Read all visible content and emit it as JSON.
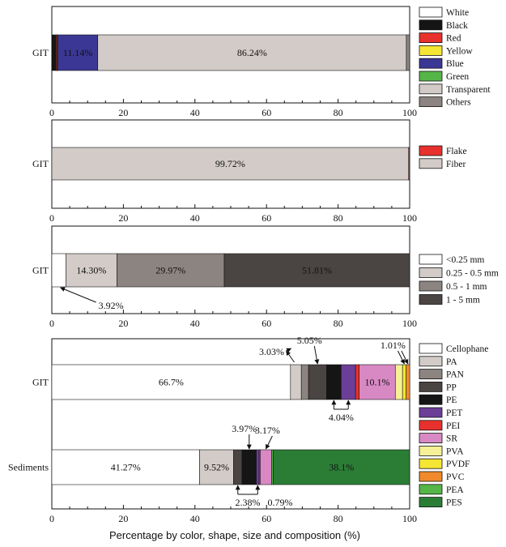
{
  "chart_data": [
    {
      "type": "bar",
      "orientation": "horizontal-stacked",
      "categories": [
        "GIT"
      ],
      "xlim": [
        0,
        100
      ],
      "ticks": [
        "0",
        "20",
        "40",
        "60",
        "80",
        "100"
      ],
      "series": [
        {
          "name": "White",
          "color": "#ffffff",
          "values": [
            0.0
          ]
        },
        {
          "name": "Black",
          "color": "#151515",
          "values": [
            1.2
          ]
        },
        {
          "name": "Red",
          "color": "#e8312c",
          "values": [
            0.3
          ]
        },
        {
          "name": "Yellow",
          "color": "#f5e633",
          "values": [
            0.2
          ]
        },
        {
          "name": "Blue",
          "color": "#3b3794",
          "values": [
            11.14
          ]
        },
        {
          "name": "Green",
          "color": "#55b547",
          "values": [
            0.0
          ]
        },
        {
          "name": "Transparent",
          "color": "#d2cbc7",
          "values": [
            86.24
          ]
        },
        {
          "name": "Others",
          "color": "#8c8480",
          "values": [
            0.92
          ]
        }
      ],
      "labels": [
        {
          "text": "11.14%",
          "series": "Blue",
          "color": "#ffffff"
        },
        {
          "text": "86.24%",
          "series": "Transparent",
          "color": "#222222"
        }
      ]
    },
    {
      "type": "bar",
      "orientation": "horizontal-stacked",
      "categories": [
        "GIT"
      ],
      "xlim": [
        0,
        100
      ],
      "ticks": [
        "0",
        "20",
        "40",
        "60",
        "80",
        "100"
      ],
      "series": [
        {
          "name": "Fiber",
          "color": "#d2cbc7",
          "values": [
            99.72
          ]
        },
        {
          "name": "Flake",
          "color": "#e8312c",
          "values": [
            0.28
          ]
        }
      ],
      "legend_order": [
        "Flake",
        "Fiber"
      ],
      "labels": [
        {
          "text": "99.72%",
          "series": "Fiber",
          "color": "#222222"
        }
      ]
    },
    {
      "type": "bar",
      "orientation": "horizontal-stacked",
      "categories": [
        "GIT"
      ],
      "xlim": [
        0,
        100
      ],
      "ticks": [
        "0",
        "20",
        "40",
        "60",
        "80",
        "100"
      ],
      "series": [
        {
          "name": "<0.25 mm",
          "color": "#ffffff",
          "values": [
            3.92
          ]
        },
        {
          "name": "0.25 - 0.5 mm",
          "color": "#d2cbc7",
          "values": [
            14.3
          ]
        },
        {
          "name": "0.5 - 1 mm",
          "color": "#8c8480",
          "values": [
            29.97
          ]
        },
        {
          "name": "1 - 5 mm",
          "color": "#4a4442",
          "values": [
            51.81
          ]
        }
      ],
      "labels": [
        {
          "text": "14.30%",
          "series": "0.25 - 0.5 mm",
          "color": "#222222"
        },
        {
          "text": "29.97%",
          "series": "0.5 - 1 mm",
          "color": "#ffffff"
        },
        {
          "text": "51.81%",
          "series": "1 - 5 mm",
          "color": "#ffffff"
        }
      ],
      "callouts": [
        {
          "text": "3.92%",
          "series": "<0.25 mm",
          "dir": "below"
        }
      ]
    },
    {
      "type": "bar",
      "orientation": "horizontal-stacked",
      "categories": [
        "Sediments",
        "GIT"
      ],
      "xlim": [
        0,
        100
      ],
      "ticks": [
        "0",
        "20",
        "40",
        "60",
        "80",
        "100"
      ],
      "xlabel": "Percentage by color, shape, size and composition (%)",
      "series": [
        {
          "name": "Cellophane",
          "color": "#ffffff",
          "values": [
            41.27,
            66.7
          ]
        },
        {
          "name": "PA",
          "color": "#d2cbc7",
          "values": [
            9.52,
            3.03
          ]
        },
        {
          "name": "PAN",
          "color": "#8c8480",
          "values": [
            0.0,
            2.02
          ]
        },
        {
          "name": "PP",
          "color": "#4a4442",
          "values": [
            2.38,
            5.05
          ]
        },
        {
          "name": "PE",
          "color": "#151515",
          "values": [
            3.97,
            4.04
          ]
        },
        {
          "name": "PET",
          "color": "#6b3e97",
          "values": [
            0.79,
            4.04
          ]
        },
        {
          "name": "PEI",
          "color": "#e8312c",
          "values": [
            0.3,
            1.01
          ]
        },
        {
          "name": "SR",
          "color": "#d889c4",
          "values": [
            3.17,
            10.1
          ]
        },
        {
          "name": "PVA",
          "color": "#f6f097",
          "values": [
            0.0,
            2.02
          ]
        },
        {
          "name": "PVDF",
          "color": "#f5e633",
          "values": [
            0.0,
            1.01
          ]
        },
        {
          "name": "PVC",
          "color": "#f08a2c",
          "values": [
            0.0,
            1.01
          ]
        },
        {
          "name": "PEA",
          "color": "#55b547",
          "values": [
            0.5,
            0.0
          ]
        },
        {
          "name": "PES",
          "color": "#2b7d36",
          "values": [
            38.1,
            0.0
          ]
        }
      ],
      "labels": [
        {
          "text": "66.7%",
          "row": "GIT",
          "series": "Cellophane",
          "color": "#222222"
        },
        {
          "text": "10.1%",
          "row": "GIT",
          "series": "SR",
          "color": "#ffffff"
        },
        {
          "text": "41.27%",
          "row": "Sediments",
          "series": "Cellophane",
          "color": "#222222"
        },
        {
          "text": "9.52%",
          "row": "Sediments",
          "series": "PA",
          "color": "#222222"
        },
        {
          "text": "38.1%",
          "row": "Sediments",
          "series": "PES",
          "color": "#ffffff"
        }
      ],
      "callouts": [
        {
          "text": "3.03%",
          "row": "GIT",
          "series": "PA",
          "dir": "up-left"
        },
        {
          "text": "5.05%",
          "row": "GIT",
          "series": "PP",
          "dir": "up"
        },
        {
          "text": "1.01%",
          "row": "GIT",
          "series": "PVDF",
          "dir": "up"
        },
        {
          "text": "1.01%",
          "row": "GIT",
          "series": "PVC",
          "dir": "up"
        },
        {
          "text": "4.04%",
          "row": "GIT",
          "series": "PE",
          "dir": "down"
        },
        {
          "text": "4.04%",
          "row": "GIT",
          "series": "PET",
          "dir": "down"
        },
        {
          "text": "3.97%",
          "row": "Sediments",
          "series": "PE",
          "dir": "up"
        },
        {
          "text": "3.17%",
          "row": "Sediments",
          "series": "SR",
          "dir": "up"
        },
        {
          "text": "2.38%",
          "row": "Sediments",
          "series": "PP",
          "dir": "down"
        },
        {
          "text": "0.79%",
          "row": "Sediments",
          "series": "PET",
          "dir": "down"
        }
      ]
    }
  ]
}
